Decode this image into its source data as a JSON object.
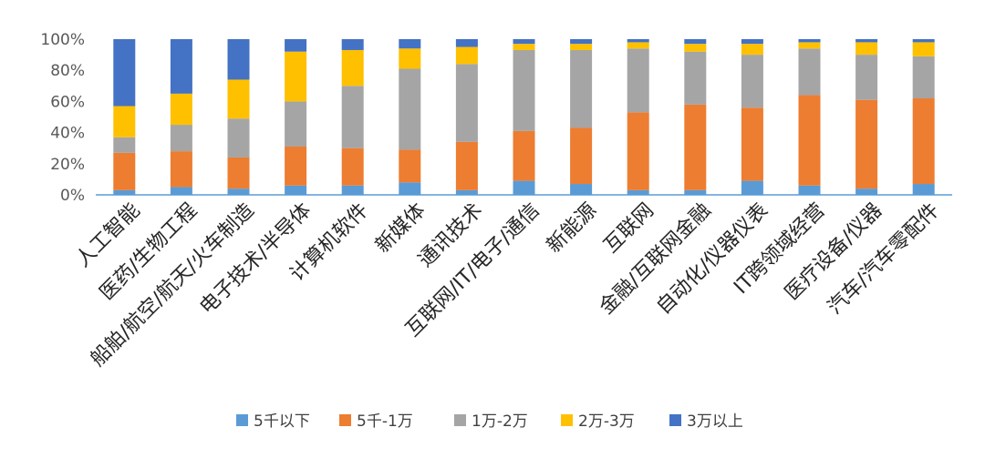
{
  "chart_data": {
    "type": "bar",
    "stacked": true,
    "percent": true,
    "categories": [
      "人工智能",
      "医药/生物工程",
      "船舶/航空/航天/火车制造",
      "电子技术/半导体",
      "计算机软件",
      "新媒体",
      "通讯技术",
      "互联网/IT/电子/通信",
      "新能源",
      "互联网",
      "金融/互联网金融",
      "自动化/仪器仪表",
      "IT跨领域经营",
      "医疗设备/仪器",
      "汽车/汽车零配件"
    ],
    "series": [
      {
        "name": "5千以下",
        "color": "#5B9BD5",
        "values": [
          3,
          5,
          4,
          6,
          6,
          8,
          3,
          9,
          7,
          3,
          3,
          9,
          6,
          4,
          7
        ]
      },
      {
        "name": "5千-1万",
        "color": "#ED7D31",
        "values": [
          24,
          23,
          20,
          25,
          24,
          21,
          31,
          32,
          36,
          50,
          55,
          47,
          58,
          57,
          55
        ]
      },
      {
        "name": "1万-2万",
        "color": "#A5A5A5",
        "values": [
          10,
          17,
          25,
          29,
          40,
          52,
          50,
          52,
          50,
          41,
          34,
          34,
          30,
          29,
          27
        ]
      },
      {
        "name": "2万-3万",
        "color": "#FFC000",
        "values": [
          20,
          20,
          25,
          32,
          23,
          13,
          11,
          4,
          4,
          4,
          5,
          7,
          4,
          8,
          9
        ]
      },
      {
        "name": "3万以上",
        "color": "#4472C4",
        "values": [
          43,
          35,
          26,
          8,
          7,
          6,
          5,
          3,
          3,
          2,
          3,
          3,
          2,
          2,
          2
        ]
      }
    ],
    "ylim": [
      0,
      100
    ],
    "yticks": [
      "0%",
      "20%",
      "40%",
      "60%",
      "80%",
      "100%"
    ],
    "legend_position": "bottom",
    "grid": false
  }
}
